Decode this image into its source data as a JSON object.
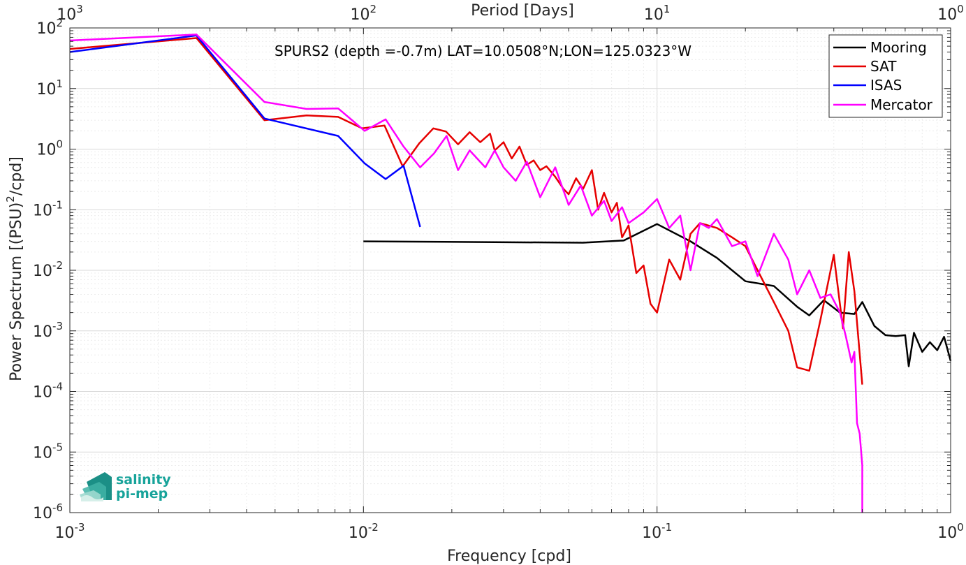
{
  "chart_data": {
    "type": "line",
    "xlabel": "Frequency [cpd]",
    "ylabel_main": "Power Spectrum [(PSU)",
    "ylabel_sup": "2",
    "ylabel_tail": "/cpd]",
    "top_axis_label": "Period [Days]",
    "annotation": "SPURS2 (depth =-0.7m) LAT=10.0508°N;LON=125.0323°W",
    "xscale": "log",
    "yscale": "log",
    "xlim": [
      0.001,
      1
    ],
    "ylim": [
      1e-06,
      100
    ],
    "grid": true,
    "legend_position": "top-right",
    "x_ticks": [
      {
        "value": 0.001,
        "base": "10",
        "exp": "-3"
      },
      {
        "value": 0.01,
        "base": "10",
        "exp": "-2"
      },
      {
        "value": 0.1,
        "base": "10",
        "exp": "-1"
      },
      {
        "value": 1,
        "base": "10",
        "exp": "0"
      }
    ],
    "y_ticks": [
      {
        "value": 100,
        "base": "10",
        "exp": "2"
      },
      {
        "value": 10,
        "base": "10",
        "exp": "1"
      },
      {
        "value": 1,
        "base": "10",
        "exp": "0"
      },
      {
        "value": 0.1,
        "base": "10",
        "exp": "-1"
      },
      {
        "value": 0.01,
        "base": "10",
        "exp": "-2"
      },
      {
        "value": 0.001,
        "base": "10",
        "exp": "-3"
      },
      {
        "value": 0.0001,
        "base": "10",
        "exp": "-4"
      },
      {
        "value": 1e-05,
        "base": "10",
        "exp": "-5"
      },
      {
        "value": 1e-06,
        "base": "10",
        "exp": "-6"
      }
    ],
    "top_ticks": [
      {
        "value": 0.001,
        "base": "10",
        "exp": "3"
      },
      {
        "value": 0.01,
        "base": "10",
        "exp": "2"
      },
      {
        "value": 0.1,
        "base": "10",
        "exp": "1"
      },
      {
        "value": 1,
        "base": "10",
        "exp": "0"
      }
    ],
    "series": [
      {
        "name": "Mooring",
        "color": "#000000",
        "x": [
          0.01,
          0.056,
          0.077,
          0.1,
          0.13,
          0.16,
          0.2,
          0.25,
          0.3,
          0.33,
          0.37,
          0.42,
          0.47,
          0.5,
          0.55,
          0.6,
          0.65,
          0.7,
          0.72,
          0.75,
          0.8,
          0.85,
          0.9,
          0.95,
          1.0
        ],
        "y": [
          0.03,
          0.0285,
          0.031,
          0.058,
          0.03,
          0.016,
          0.0066,
          0.0055,
          0.0025,
          0.0018,
          0.0032,
          0.002,
          0.0019,
          0.003,
          0.0012,
          0.00085,
          0.00082,
          0.00085,
          0.00026,
          0.00093,
          0.00045,
          0.00065,
          0.00048,
          0.0008,
          0.00032
        ]
      },
      {
        "name": "SAT",
        "color": "#e60000",
        "x": [
          0.001,
          0.0027,
          0.0046,
          0.0064,
          0.0082,
          0.0099,
          0.0118,
          0.0136,
          0.0155,
          0.0173,
          0.0191,
          0.021,
          0.023,
          0.025,
          0.027,
          0.028,
          0.03,
          0.032,
          0.034,
          0.036,
          0.038,
          0.04,
          0.042,
          0.045,
          0.048,
          0.05,
          0.053,
          0.056,
          0.06,
          0.063,
          0.066,
          0.07,
          0.073,
          0.076,
          0.08,
          0.085,
          0.09,
          0.095,
          0.1,
          0.11,
          0.12,
          0.13,
          0.14,
          0.16,
          0.18,
          0.2,
          0.22,
          0.25,
          0.28,
          0.3,
          0.33,
          0.36,
          0.4,
          0.43,
          0.45,
          0.47,
          0.5
        ],
        "y": [
          45,
          68,
          3.0,
          3.6,
          3.4,
          2.2,
          2.45,
          0.52,
          1.25,
          2.2,
          1.95,
          1.2,
          1.9,
          1.3,
          1.8,
          0.95,
          1.3,
          0.7,
          1.1,
          0.55,
          0.65,
          0.45,
          0.52,
          0.35,
          0.22,
          0.18,
          0.33,
          0.22,
          0.45,
          0.1,
          0.19,
          0.09,
          0.13,
          0.035,
          0.055,
          0.009,
          0.012,
          0.0028,
          0.002,
          0.015,
          0.007,
          0.04,
          0.06,
          0.05,
          0.035,
          0.025,
          0.01,
          0.003,
          0.001,
          0.00025,
          0.00022,
          0.0015,
          0.018,
          0.0011,
          0.02,
          0.0045,
          0.00013
        ]
      },
      {
        "name": "ISAS",
        "color": "#0000ff",
        "x": [
          0.001,
          0.0027,
          0.0046,
          0.0082,
          0.0101,
          0.0119,
          0.0137,
          0.0156
        ],
        "y": [
          40,
          75,
          3.2,
          1.65,
          0.58,
          0.32,
          0.53,
          0.052
        ]
      },
      {
        "name": "Mercator",
        "color": "#ff00ff",
        "x": [
          0.001,
          0.0027,
          0.0046,
          0.0064,
          0.0082,
          0.0101,
          0.0119,
          0.0137,
          0.0156,
          0.0174,
          0.0192,
          0.021,
          0.023,
          0.026,
          0.028,
          0.03,
          0.033,
          0.036,
          0.04,
          0.045,
          0.05,
          0.055,
          0.06,
          0.066,
          0.07,
          0.076,
          0.08,
          0.09,
          0.1,
          0.11,
          0.12,
          0.13,
          0.14,
          0.15,
          0.16,
          0.18,
          0.2,
          0.22,
          0.25,
          0.28,
          0.3,
          0.33,
          0.36,
          0.39,
          0.42,
          0.44,
          0.46,
          0.47,
          0.48,
          0.49,
          0.5,
          0.5
        ],
        "y": [
          62,
          78,
          6.0,
          4.6,
          4.7,
          2.0,
          3.1,
          1.1,
          0.5,
          0.85,
          1.65,
          0.45,
          0.95,
          0.5,
          0.95,
          0.5,
          0.3,
          0.62,
          0.16,
          0.5,
          0.12,
          0.25,
          0.08,
          0.14,
          0.065,
          0.11,
          0.06,
          0.09,
          0.15,
          0.05,
          0.08,
          0.01,
          0.06,
          0.05,
          0.07,
          0.025,
          0.03,
          0.008,
          0.04,
          0.015,
          0.004,
          0.01,
          0.0035,
          0.004,
          0.002,
          0.0008,
          0.0003,
          0.00045,
          3e-05,
          2e-05,
          6e-06,
          1e-06
        ]
      }
    ]
  },
  "logo": {
    "line1": "salinity",
    "line2": "pi-mep",
    "color": "#17a39a"
  }
}
